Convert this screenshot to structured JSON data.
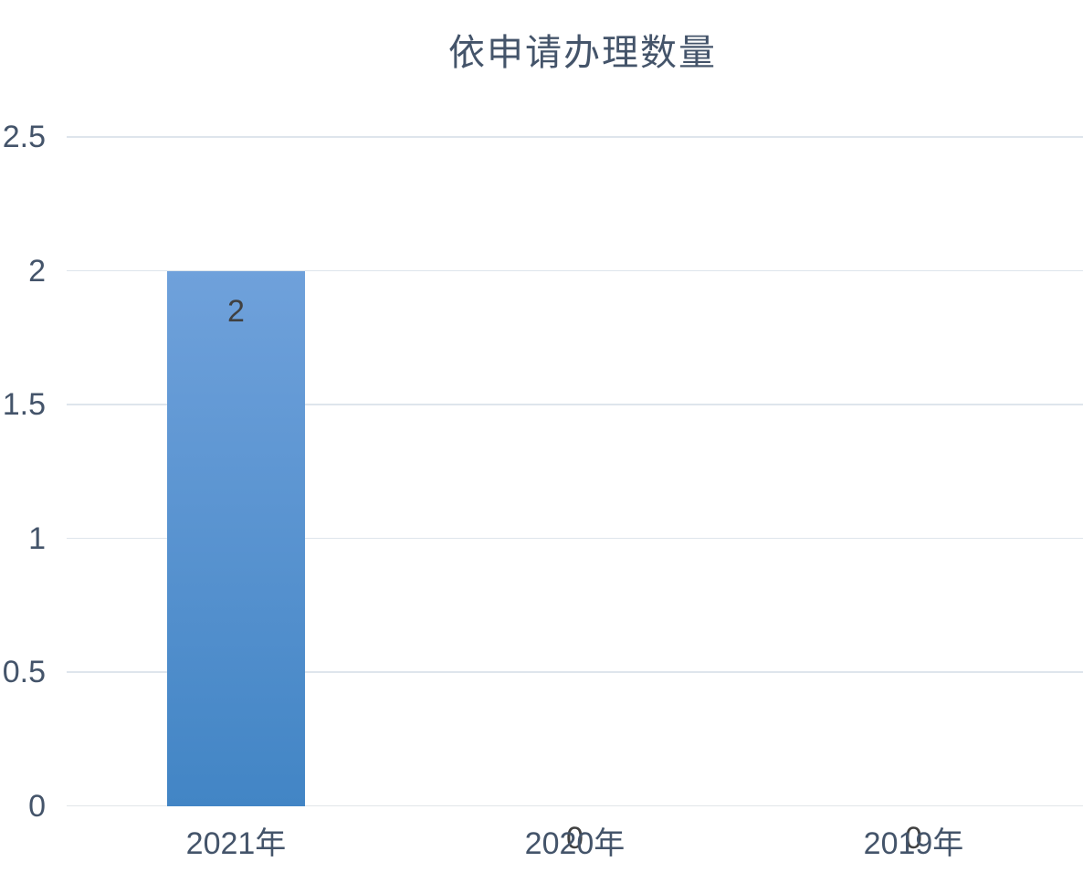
{
  "chart_data": {
    "type": "bar",
    "title": "依申请办理数量",
    "categories": [
      "2021年",
      "2020年",
      "2019年"
    ],
    "values": [
      2,
      0,
      0
    ],
    "data_labels": [
      "2",
      "0",
      "0"
    ],
    "ytick_labels": [
      "0",
      "0.5",
      "1",
      "1.5",
      "2",
      "2.5"
    ],
    "yticks": [
      0,
      0.5,
      1,
      1.5,
      2,
      2.5
    ],
    "ylim": [
      0,
      2.5
    ],
    "xlabel": "",
    "ylabel": "",
    "grid": "horizontal",
    "legend_position": "none",
    "data_label_position": "inside-end",
    "colors": {
      "bar_gradient_top": "#6FA1DB",
      "bar_gradient_bottom": "#4285C5",
      "title_text": "#44546A",
      "axis_text": "#44546A",
      "data_label_text": "#404040",
      "gridline": "#DEE5EC",
      "background": "#FFFFFF"
    }
  }
}
